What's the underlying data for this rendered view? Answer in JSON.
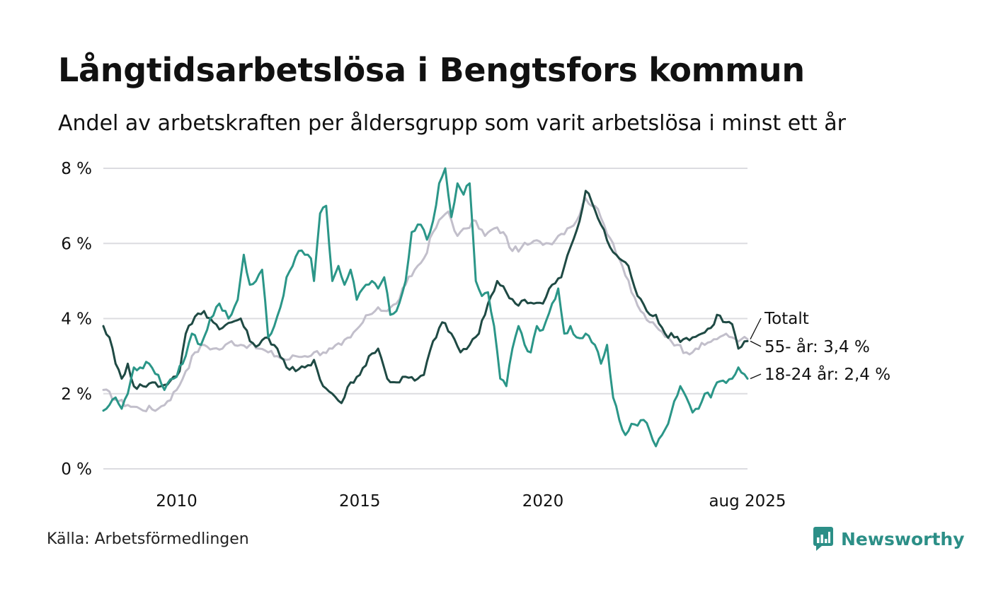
{
  "title": "Långtidsarbetslösa i Bengtsfors kommun",
  "subtitle": "Andel av arbetskraften per åldersgrupp som varit arbetslösa i minst ett år",
  "source": "Källa: Arbetsförmedlingen",
  "brand": {
    "name": "Newsworthy",
    "icon": "newsworthy-logo-icon",
    "color": "#2c8f87"
  },
  "chart_data": {
    "type": "line",
    "x_start": "2008-01",
    "x_end": "2025-08",
    "x_step": "month",
    "x_ticks": [
      {
        "label": "2010",
        "x": "2010-01"
      },
      {
        "label": "2015",
        "x": "2015-01"
      },
      {
        "label": "2020",
        "x": "2020-01"
      },
      {
        "label": "aug 2025",
        "x": "2025-08"
      }
    ],
    "ylim": [
      0,
      8
    ],
    "y_ticks": [
      {
        "value": 0,
        "label": "0 %"
      },
      {
        "value": 2,
        "label": "2 %"
      },
      {
        "value": 4,
        "label": "4 %"
      },
      {
        "value": 6,
        "label": "6 %"
      },
      {
        "value": 8,
        "label": "8 %"
      }
    ],
    "grid": true,
    "series": [
      {
        "name": "Totalt",
        "label": "Totalt",
        "color": "#c2bfcb",
        "keypoints": [
          [
            "2008-01",
            2.1
          ],
          [
            "2008-06",
            1.8
          ],
          [
            "2008-09",
            1.7
          ],
          [
            "2009-01",
            1.6
          ],
          [
            "2009-07",
            1.6
          ],
          [
            "2009-10",
            1.8
          ],
          [
            "2010-01",
            2.1
          ],
          [
            "2010-04",
            2.6
          ],
          [
            "2010-07",
            3.1
          ],
          [
            "2010-10",
            3.3
          ],
          [
            "2011-01",
            3.2
          ],
          [
            "2011-04",
            3.2
          ],
          [
            "2011-07",
            3.4
          ],
          [
            "2011-10",
            3.3
          ],
          [
            "2012-01",
            3.3
          ],
          [
            "2012-04",
            3.2
          ],
          [
            "2012-07",
            3.1
          ],
          [
            "2012-10",
            3.0
          ],
          [
            "2013-01",
            2.9
          ],
          [
            "2013-04",
            3.0
          ],
          [
            "2013-07",
            3.0
          ],
          [
            "2013-10",
            3.1
          ],
          [
            "2014-01",
            3.1
          ],
          [
            "2014-04",
            3.2
          ],
          [
            "2014-07",
            3.3
          ],
          [
            "2014-10",
            3.5
          ],
          [
            "2015-01",
            3.8
          ],
          [
            "2015-04",
            4.1
          ],
          [
            "2015-07",
            4.3
          ],
          [
            "2015-10",
            4.2
          ],
          [
            "2016-01",
            4.4
          ],
          [
            "2016-04",
            4.9
          ],
          [
            "2016-07",
            5.3
          ],
          [
            "2016-10",
            5.6
          ],
          [
            "2017-01",
            6.3
          ],
          [
            "2017-04",
            6.7
          ],
          [
            "2017-06",
            6.85
          ],
          [
            "2017-09",
            6.2
          ],
          [
            "2017-12",
            6.4
          ],
          [
            "2018-03",
            6.6
          ],
          [
            "2018-06",
            6.2
          ],
          [
            "2018-09",
            6.4
          ],
          [
            "2018-12",
            6.3
          ],
          [
            "2019-03",
            5.8
          ],
          [
            "2019-06",
            5.9
          ],
          [
            "2019-09",
            6.0
          ],
          [
            "2019-12",
            6.05
          ],
          [
            "2020-03",
            6.0
          ],
          [
            "2020-06",
            6.2
          ],
          [
            "2020-09",
            6.4
          ],
          [
            "2020-12",
            6.6
          ],
          [
            "2021-03",
            7.2
          ],
          [
            "2021-06",
            7.0
          ],
          [
            "2021-09",
            6.5
          ],
          [
            "2021-12",
            6.0
          ],
          [
            "2022-03",
            5.4
          ],
          [
            "2022-06",
            4.7
          ],
          [
            "2022-09",
            4.2
          ],
          [
            "2022-12",
            3.9
          ],
          [
            "2023-03",
            3.7
          ],
          [
            "2023-06",
            3.5
          ],
          [
            "2023-09",
            3.3
          ],
          [
            "2023-12",
            3.1
          ],
          [
            "2024-03",
            3.2
          ],
          [
            "2024-06",
            3.3
          ],
          [
            "2024-09",
            3.45
          ],
          [
            "2024-12",
            3.55
          ],
          [
            "2025-03",
            3.5
          ],
          [
            "2025-06",
            3.45
          ],
          [
            "2025-08",
            3.45
          ]
        ]
      },
      {
        "name": "55- år",
        "label": "55- år: 3,4 %",
        "color": "#1f4a44",
        "keypoints": [
          [
            "2008-01",
            3.8
          ],
          [
            "2008-03",
            3.5
          ],
          [
            "2008-05",
            2.8
          ],
          [
            "2008-07",
            2.4
          ],
          [
            "2008-09",
            2.8
          ],
          [
            "2008-11",
            2.2
          ],
          [
            "2009-02",
            2.2
          ],
          [
            "2009-05",
            2.3
          ],
          [
            "2009-08",
            2.2
          ],
          [
            "2009-11",
            2.35
          ],
          [
            "2010-02",
            2.6
          ],
          [
            "2010-04",
            3.6
          ],
          [
            "2010-07",
            4.05
          ],
          [
            "2010-10",
            4.2
          ],
          [
            "2011-01",
            3.9
          ],
          [
            "2011-04",
            3.75
          ],
          [
            "2011-07",
            3.9
          ],
          [
            "2011-10",
            4.0
          ],
          [
            "2012-01",
            3.4
          ],
          [
            "2012-04",
            3.3
          ],
          [
            "2012-07",
            3.5
          ],
          [
            "2012-10",
            3.2
          ],
          [
            "2013-01",
            2.7
          ],
          [
            "2013-04",
            2.6
          ],
          [
            "2013-07",
            2.7
          ],
          [
            "2013-10",
            2.9
          ],
          [
            "2014-01",
            2.2
          ],
          [
            "2014-04",
            2.0
          ],
          [
            "2014-07",
            1.75
          ],
          [
            "2014-10",
            2.3
          ],
          [
            "2015-01",
            2.5
          ],
          [
            "2015-04",
            3.0
          ],
          [
            "2015-07",
            3.2
          ],
          [
            "2015-10",
            2.4
          ],
          [
            "2016-01",
            2.3
          ],
          [
            "2016-04",
            2.45
          ],
          [
            "2016-07",
            2.35
          ],
          [
            "2016-10",
            2.5
          ],
          [
            "2017-01",
            3.4
          ],
          [
            "2017-04",
            3.9
          ],
          [
            "2017-07",
            3.6
          ],
          [
            "2017-10",
            3.1
          ],
          [
            "2018-01",
            3.3
          ],
          [
            "2018-04",
            3.6
          ],
          [
            "2018-07",
            4.4
          ],
          [
            "2018-10",
            5.0
          ],
          [
            "2019-01",
            4.7
          ],
          [
            "2019-04",
            4.4
          ],
          [
            "2019-07",
            4.5
          ],
          [
            "2019-10",
            4.4
          ],
          [
            "2020-01",
            4.4
          ],
          [
            "2020-04",
            4.9
          ],
          [
            "2020-07",
            5.1
          ],
          [
            "2020-10",
            5.9
          ],
          [
            "2021-01",
            6.6
          ],
          [
            "2021-03",
            7.4
          ],
          [
            "2021-05",
            7.1
          ],
          [
            "2021-08",
            6.5
          ],
          [
            "2021-11",
            5.9
          ],
          [
            "2022-02",
            5.6
          ],
          [
            "2022-05",
            5.4
          ],
          [
            "2022-08",
            4.6
          ],
          [
            "2022-11",
            4.2
          ],
          [
            "2023-02",
            4.1
          ],
          [
            "2023-05",
            3.6
          ],
          [
            "2023-08",
            3.5
          ],
          [
            "2023-11",
            3.45
          ],
          [
            "2024-02",
            3.5
          ],
          [
            "2024-05",
            3.6
          ],
          [
            "2024-08",
            3.75
          ],
          [
            "2024-10",
            4.1
          ],
          [
            "2025-01",
            3.9
          ],
          [
            "2025-03",
            3.85
          ],
          [
            "2025-05",
            3.2
          ],
          [
            "2025-08",
            3.4
          ]
        ]
      },
      {
        "name": "18-24 år",
        "label": "18-24 år: 2,4 %",
        "color": "#2b9688",
        "keypoints": [
          [
            "2008-01",
            1.55
          ],
          [
            "2008-03",
            1.7
          ],
          [
            "2008-05",
            1.9
          ],
          [
            "2008-07",
            1.6
          ],
          [
            "2008-09",
            2.0
          ],
          [
            "2008-11",
            2.7
          ],
          [
            "2009-01",
            2.7
          ],
          [
            "2009-04",
            2.8
          ],
          [
            "2009-07",
            2.5
          ],
          [
            "2009-09",
            2.1
          ],
          [
            "2009-12",
            2.4
          ],
          [
            "2010-03",
            2.8
          ],
          [
            "2010-06",
            3.6
          ],
          [
            "2010-09",
            3.3
          ],
          [
            "2010-12",
            4.0
          ],
          [
            "2011-03",
            4.4
          ],
          [
            "2011-06",
            4.0
          ],
          [
            "2011-09",
            4.5
          ],
          [
            "2011-11",
            5.7
          ],
          [
            "2012-01",
            4.9
          ],
          [
            "2012-03",
            5.0
          ],
          [
            "2012-05",
            5.3
          ],
          [
            "2012-07",
            3.5
          ],
          [
            "2012-09",
            3.8
          ],
          [
            "2012-11",
            4.3
          ],
          [
            "2013-01",
            5.1
          ],
          [
            "2013-03",
            5.4
          ],
          [
            "2013-05",
            5.8
          ],
          [
            "2013-07",
            5.7
          ],
          [
            "2013-09",
            5.6
          ],
          [
            "2013-10",
            5.0
          ],
          [
            "2013-12",
            6.8
          ],
          [
            "2014-02",
            7.0
          ],
          [
            "2014-04",
            5.0
          ],
          [
            "2014-06",
            5.4
          ],
          [
            "2014-08",
            4.9
          ],
          [
            "2014-10",
            5.3
          ],
          [
            "2014-12",
            4.5
          ],
          [
            "2015-03",
            4.9
          ],
          [
            "2015-05",
            5.0
          ],
          [
            "2015-07",
            4.8
          ],
          [
            "2015-09",
            5.1
          ],
          [
            "2015-11",
            4.1
          ],
          [
            "2016-01",
            4.2
          ],
          [
            "2016-04",
            5.0
          ],
          [
            "2016-06",
            6.3
          ],
          [
            "2016-09",
            6.5
          ],
          [
            "2016-11",
            6.1
          ],
          [
            "2017-01",
            6.6
          ],
          [
            "2017-03",
            7.6
          ],
          [
            "2017-05",
            8.0
          ],
          [
            "2017-07",
            6.7
          ],
          [
            "2017-09",
            7.6
          ],
          [
            "2017-11",
            7.3
          ],
          [
            "2018-01",
            7.6
          ],
          [
            "2018-03",
            5.0
          ],
          [
            "2018-05",
            4.6
          ],
          [
            "2018-07",
            4.7
          ],
          [
            "2018-09",
            3.8
          ],
          [
            "2018-11",
            2.4
          ],
          [
            "2019-01",
            2.2
          ],
          [
            "2019-03",
            3.2
          ],
          [
            "2019-05",
            3.8
          ],
          [
            "2019-07",
            3.3
          ],
          [
            "2019-09",
            3.1
          ],
          [
            "2019-11",
            3.8
          ],
          [
            "2020-01",
            3.7
          ],
          [
            "2020-04",
            4.4
          ],
          [
            "2020-06",
            4.8
          ],
          [
            "2020-08",
            3.6
          ],
          [
            "2020-10",
            3.8
          ],
          [
            "2020-12",
            3.5
          ],
          [
            "2021-03",
            3.6
          ],
          [
            "2021-06",
            3.3
          ],
          [
            "2021-08",
            2.8
          ],
          [
            "2021-10",
            3.3
          ],
          [
            "2021-12",
            1.9
          ],
          [
            "2022-02",
            1.3
          ],
          [
            "2022-04",
            0.9
          ],
          [
            "2022-06",
            1.2
          ],
          [
            "2022-08",
            1.15
          ],
          [
            "2022-10",
            1.3
          ],
          [
            "2022-12",
            1.0
          ],
          [
            "2023-02",
            0.6
          ],
          [
            "2023-04",
            0.9
          ],
          [
            "2023-06",
            1.2
          ],
          [
            "2023-08",
            1.8
          ],
          [
            "2023-10",
            2.2
          ],
          [
            "2023-12",
            1.9
          ],
          [
            "2024-02",
            1.5
          ],
          [
            "2024-04",
            1.6
          ],
          [
            "2024-06",
            2.0
          ],
          [
            "2024-08",
            1.9
          ],
          [
            "2024-10",
            2.3
          ],
          [
            "2024-12",
            2.35
          ],
          [
            "2025-03",
            2.4
          ],
          [
            "2025-05",
            2.7
          ],
          [
            "2025-08",
            2.4
          ]
        ]
      }
    ]
  }
}
